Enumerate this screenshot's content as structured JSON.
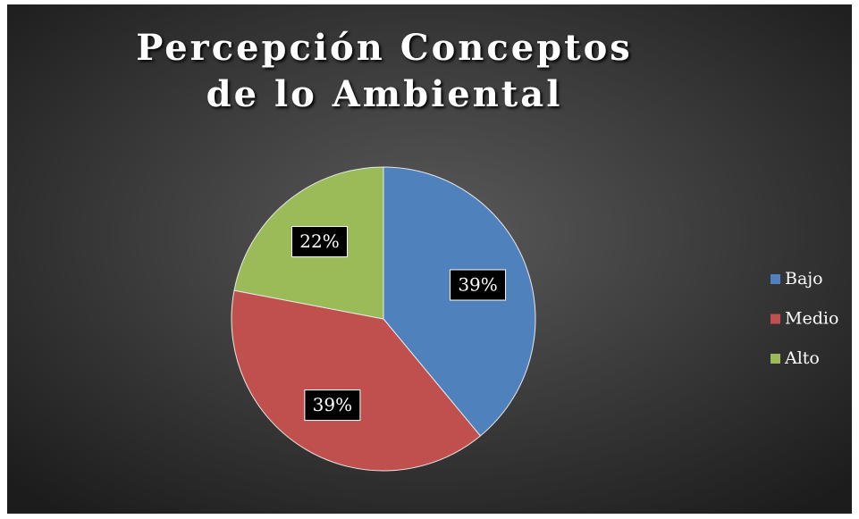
{
  "chart_data": {
    "type": "pie",
    "title": "Percepción Conceptos de lo Ambiental",
    "categories": [
      "Bajo",
      "Medio",
      "Alto"
    ],
    "values": [
      39,
      39,
      22
    ],
    "value_labels": [
      "39%",
      "39%",
      "22%"
    ],
    "colors": [
      "#4f81bd",
      "#c0504d",
      "#9bbb59"
    ],
    "legend": "right"
  }
}
